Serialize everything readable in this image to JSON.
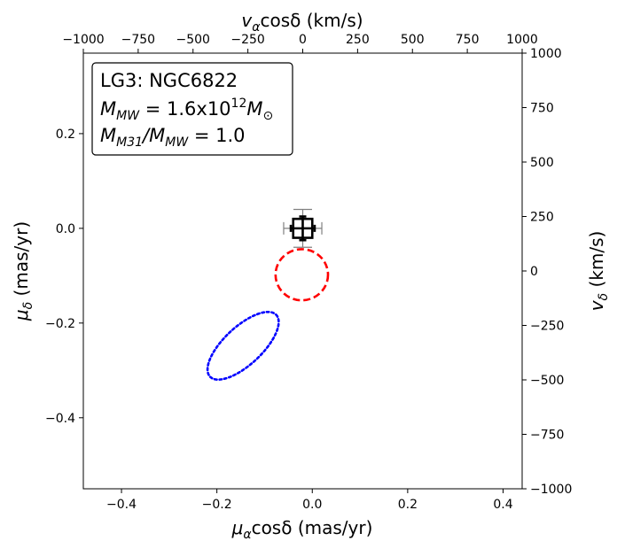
{
  "chart_data": {
    "type": "scatter",
    "annotation": {
      "line1": "LG3: NGC6822",
      "line2_prefix": "M",
      "line2_sub": "MW",
      "line2_mid": " = 1.6x10",
      "line2_sup": "12",
      "line2_end": "M",
      "line2_end_sub": "⊙",
      "line3_a": "M",
      "line3_a_sub": "M31",
      "line3_slash": "/M",
      "line3_b_sub": "MW",
      "line3_end": " = 1.0"
    },
    "x_bottom": {
      "label_main": "μ",
      "label_sub": "α",
      "label_rest": "cosδ (mas/yr)",
      "lim": [
        -0.48,
        0.44
      ],
      "ticks": [
        -0.4,
        -0.2,
        0.0,
        0.2,
        0.4
      ],
      "tick_labels": [
        "−0.4",
        "−0.2",
        "0.0",
        "0.2",
        "0.4"
      ]
    },
    "y_left": {
      "label_main": "μ",
      "label_sub": "δ",
      "label_rest": " (mas/yr)",
      "lim": [
        -0.55,
        0.37
      ],
      "ticks": [
        -0.4,
        -0.2,
        0.0,
        0.2
      ],
      "tick_labels": [
        "−0.4",
        "−0.2",
        "0.0",
        "0.2"
      ]
    },
    "x_top": {
      "label_main": "v",
      "label_sub": "α",
      "label_rest": "cosδ (km/s)",
      "lim": [
        -1000,
        1000
      ],
      "ticks": [
        -1000,
        -750,
        -500,
        -250,
        0,
        250,
        500,
        750,
        1000
      ],
      "tick_labels": [
        "−1000",
        "−750",
        "−500",
        "−250",
        "0",
        "250",
        "500",
        "750",
        "1000"
      ]
    },
    "y_right": {
      "label_main": "v",
      "label_sub": "δ",
      "label_rest": " (km/s)",
      "lim": [
        -1000,
        1000
      ],
      "ticks": [
        -1000,
        -750,
        -500,
        -250,
        0,
        250,
        500,
        750,
        1000
      ],
      "tick_labels": [
        "−1000",
        "−750",
        "−500",
        "−250",
        "0",
        "250",
        "500",
        "750",
        "1000"
      ]
    },
    "observed_point": {
      "x": -0.02,
      "y": 0.0,
      "box_half_x": 0.02,
      "box_half_y": 0.02,
      "err_x_black": 0.025,
      "err_y_black": 0.025,
      "err_x_gray": 0.04,
      "err_y_gray": 0.04,
      "black_color": "#000000",
      "gray_color": "#808080"
    },
    "red_ellipse": {
      "cx": -0.022,
      "cy": -0.098,
      "rx": 0.055,
      "ry": 0.054,
      "angle_deg": 0,
      "color": "#ff0000",
      "style": "dashed"
    },
    "blue_ellipse": {
      "cx": -0.145,
      "cy": -0.248,
      "rx": 0.095,
      "ry": 0.04,
      "angle_deg": 43,
      "color": "#0000ff",
      "style": "dotted"
    },
    "grid": false
  }
}
